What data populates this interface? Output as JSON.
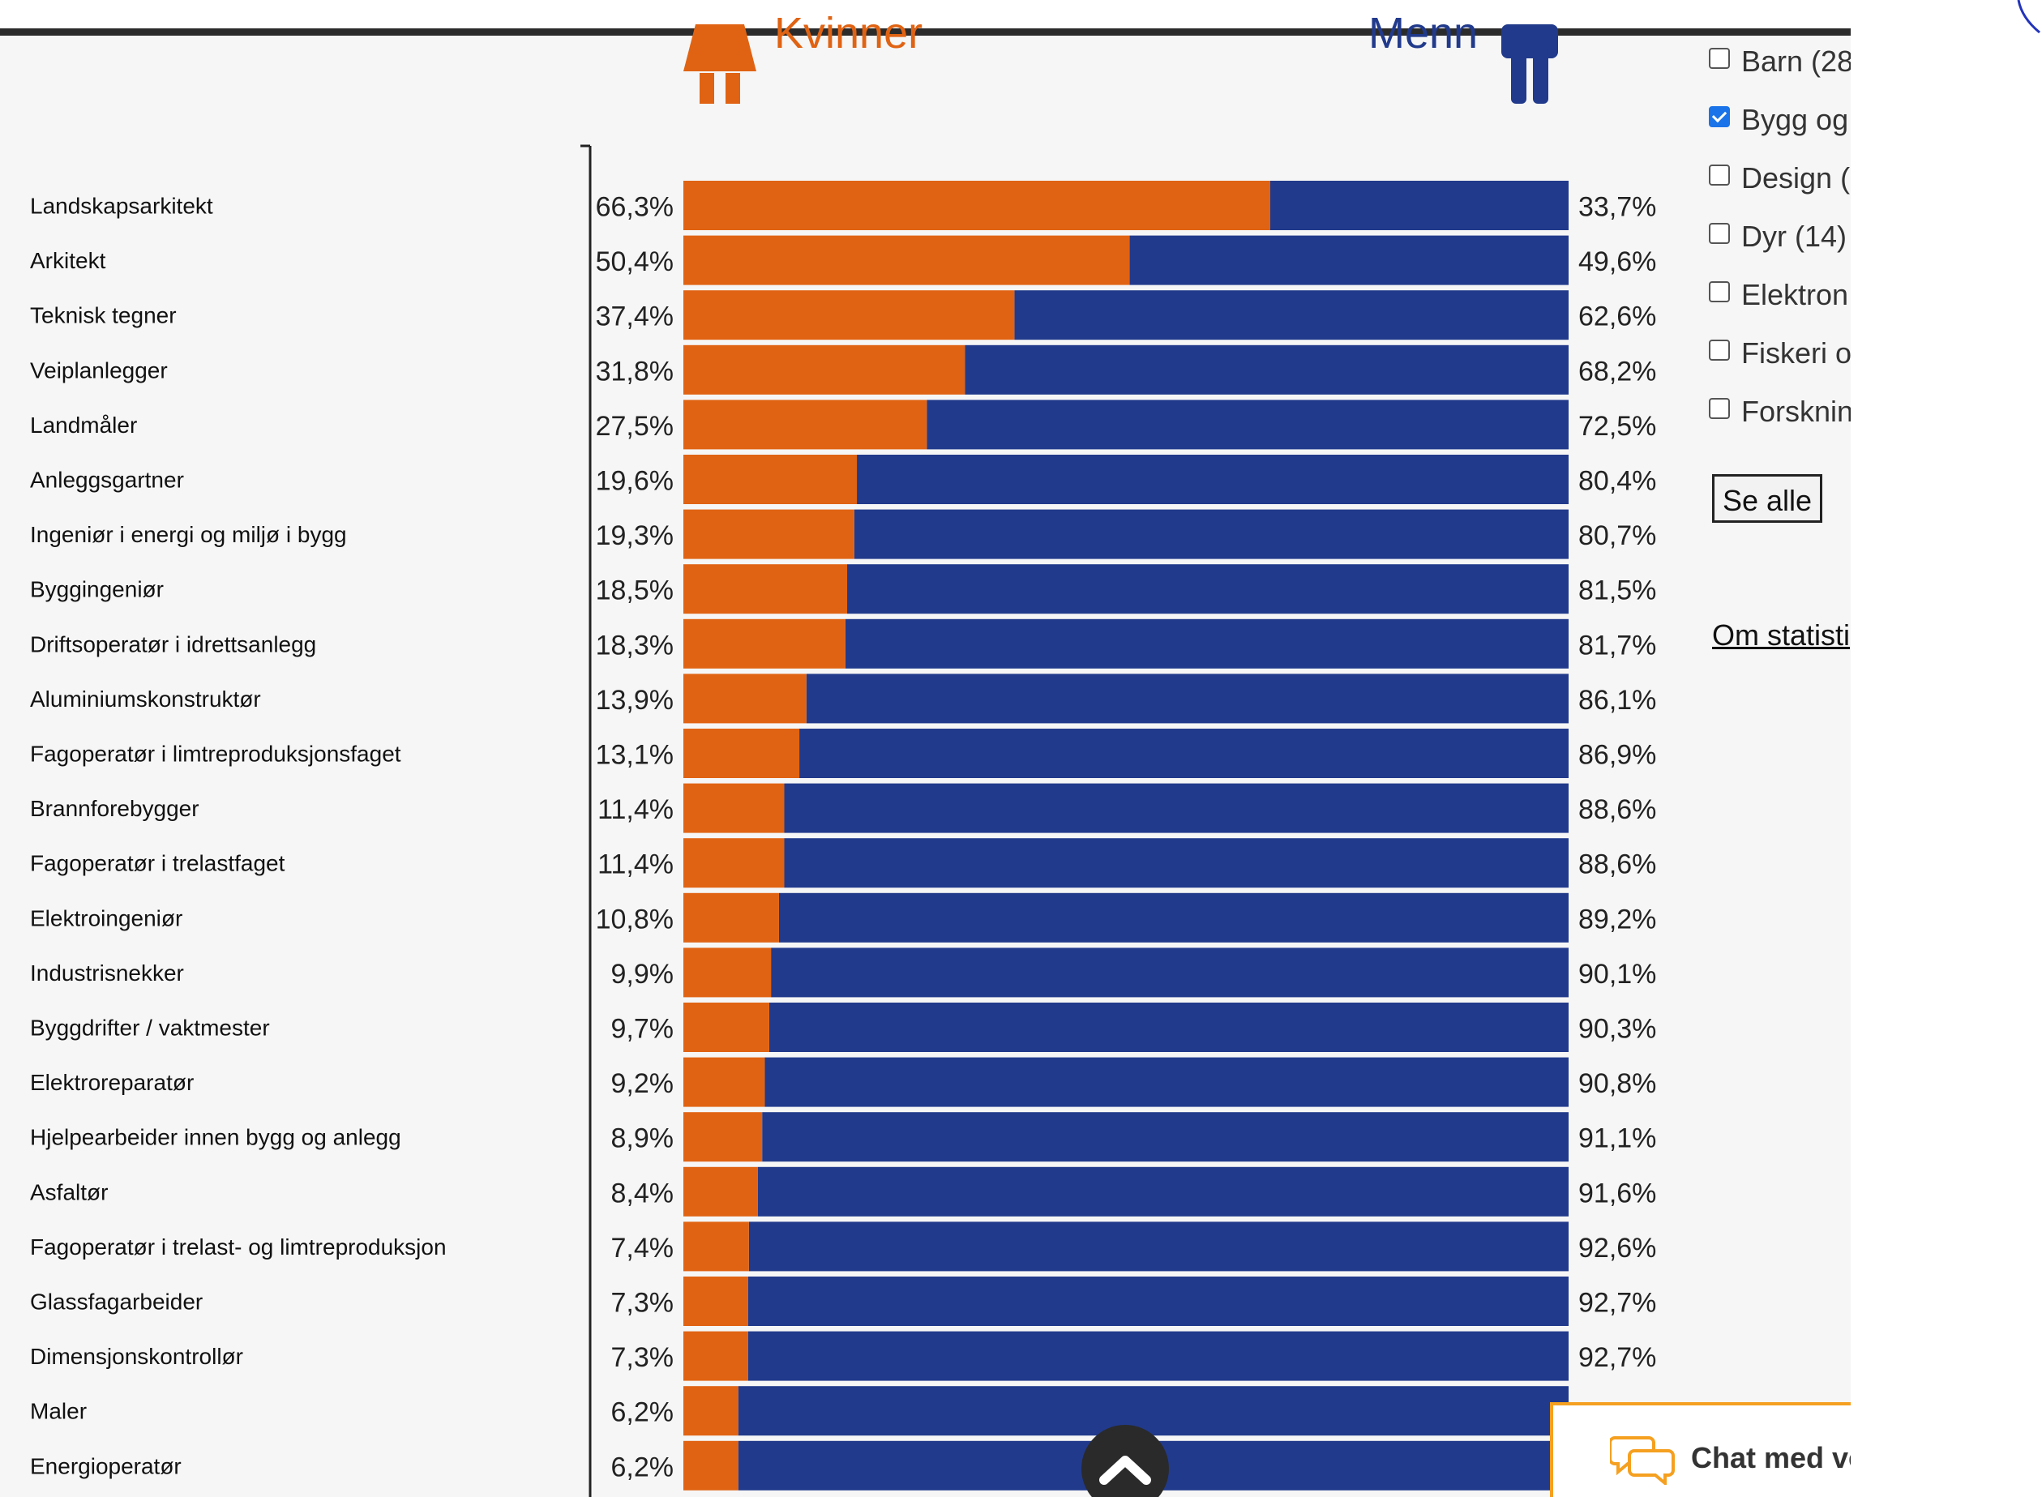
{
  "header": {
    "women_label": "Kvinner",
    "men_label": "Menn",
    "colors": {
      "women": "#e06313",
      "men": "#213a8b"
    }
  },
  "chart_data": {
    "type": "bar",
    "stacked": true,
    "orientation": "horizontal",
    "xlim": [
      0,
      100
    ],
    "categories": [
      "Landskapsarkitekt",
      "Arkitekt",
      "Teknisk tegner",
      "Veiplanlegger",
      "Landmåler",
      "Anleggsgartner",
      "Ingeniør i energi og miljø i bygg",
      "Byggingeniør",
      "Driftsoperatør i idrettsanlegg",
      "Aluminiumskonstruktør",
      "Fagoperatør i limtreproduksjonsfaget",
      "Brannforebygger",
      "Fagoperatør i trelastfaget",
      "Elektroingeniør",
      "Industrisnekker",
      "Byggdrifter / vaktmester",
      "Elektroreparatør",
      "Hjelpearbeider innen bygg og anlegg",
      "Asfaltør",
      "Fagoperatør i trelast- og limtreproduksjon",
      "Glassfagarbeider",
      "Dimensjonskontrollør",
      "Maler",
      "Energioperatør"
    ],
    "series": [
      {
        "name": "Kvinner",
        "color": "#e06313",
        "values": [
          66.3,
          50.4,
          37.4,
          31.8,
          27.5,
          19.6,
          19.3,
          18.5,
          18.3,
          13.9,
          13.1,
          11.4,
          11.4,
          10.8,
          9.9,
          9.7,
          9.2,
          8.9,
          8.4,
          7.4,
          7.3,
          7.3,
          6.2,
          6.2
        ],
        "labels": [
          "66,3%",
          "50,4%",
          "37,4%",
          "31,8%",
          "27,5%",
          "19,6%",
          "19,3%",
          "18,5%",
          "18,3%",
          "13,9%",
          "13,1%",
          "11,4%",
          "11,4%",
          "10,8%",
          "9,9%",
          "9,7%",
          "9,2%",
          "8,9%",
          "8,4%",
          "7,4%",
          "7,3%",
          "7,3%",
          "6,2%",
          "6,2%"
        ]
      },
      {
        "name": "Menn",
        "color": "#213a8b",
        "values": [
          33.7,
          49.6,
          62.6,
          68.2,
          72.5,
          80.4,
          80.7,
          81.5,
          81.7,
          86.1,
          86.9,
          88.6,
          88.6,
          89.2,
          90.1,
          90.3,
          90.8,
          91.1,
          91.6,
          92.6,
          92.7,
          92.7,
          null,
          null
        ],
        "labels": [
          "33,7%",
          "49,6%",
          "62,6%",
          "68,2%",
          "72,5%",
          "80,4%",
          "80,7%",
          "81,5%",
          "81,7%",
          "86,1%",
          "86,9%",
          "88,6%",
          "88,6%",
          "89,2%",
          "90,1%",
          "90,3%",
          "90,8%",
          "91,1%",
          "91,6%",
          "92,6%",
          "92,7%",
          "92,7%",
          "",
          ""
        ]
      }
    ]
  },
  "sidebar": {
    "categories": [
      {
        "label": "Barn (28",
        "checked": false
      },
      {
        "label": "Bygg og",
        "checked": true
      },
      {
        "label": "Design (",
        "checked": false
      },
      {
        "label": "Dyr (14)",
        "checked": false
      },
      {
        "label": "Elektron",
        "checked": false
      },
      {
        "label": "Fiskeri o",
        "checked": false
      },
      {
        "label": "Forsknin",
        "checked": false
      }
    ],
    "see_all_label": "Se alle",
    "about_link": "Om statisti"
  },
  "chat": {
    "label": "Chat med ve"
  }
}
